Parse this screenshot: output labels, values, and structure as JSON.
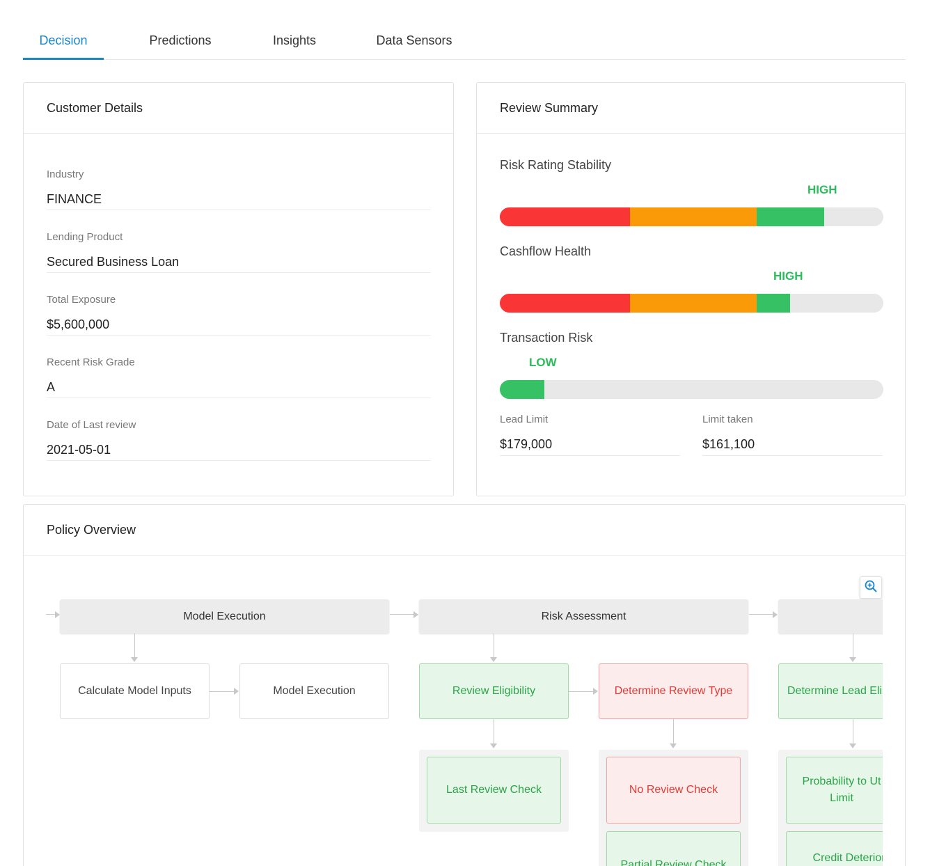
{
  "tabs": [
    {
      "label": "Decision",
      "active": true
    },
    {
      "label": "Predictions",
      "active": false
    },
    {
      "label": "Insights",
      "active": false
    },
    {
      "label": "Data Sensors",
      "active": false
    }
  ],
  "customer_details": {
    "title": "Customer Details",
    "fields": [
      {
        "label": "Industry",
        "value": "FINANCE"
      },
      {
        "label": "Lending Product",
        "value": "Secured Business Loan"
      },
      {
        "label": "Total Exposure",
        "value": "$5,600,000"
      },
      {
        "label": "Recent Risk Grade",
        "value": "A"
      },
      {
        "label": "Date of Last review",
        "value": "2021-05-01"
      }
    ]
  },
  "review_summary": {
    "title": "Review Summary",
    "metrics": [
      {
        "label": "Risk Rating Stability",
        "level": "HIGH",
        "fill_fraction": 0.846
      },
      {
        "label": "Cashflow Health",
        "level": "HIGH",
        "fill_fraction": 0.756
      },
      {
        "label": "Transaction Risk",
        "level": "LOW",
        "fill_fraction": 0.116
      }
    ],
    "limits": [
      {
        "label": "Lead Limit",
        "value": "$179,000"
      },
      {
        "label": "Limit taken",
        "value": "$161,100"
      }
    ]
  },
  "policy_overview": {
    "title": "Policy Overview",
    "stages": [
      "Model Execution",
      "Risk Assessment",
      ""
    ],
    "nodes": {
      "calculate_model_inputs": "Calculate Model Inputs",
      "model_execution": "Model Execution",
      "review_eligibility": "Review Eligibility",
      "determine_review_type": "Determine Review Type",
      "determine_lead_eligibility": "Determine Lead Eli",
      "last_review_check": "Last Review Check",
      "no_review_check": "No Review Check",
      "partial_review_check": "Partial Review Check",
      "probability_to_utilise_limit": "Probability to Ut Limit",
      "credit_deterioration": "Credit Deteriora"
    },
    "zoom_icon": "zoom-in-icon"
  },
  "colors": {
    "accent": "#1a86c8",
    "red": "#fa3535",
    "orange": "#fb9a08",
    "green": "#35c164",
    "level_text": "#2dbc5b"
  }
}
